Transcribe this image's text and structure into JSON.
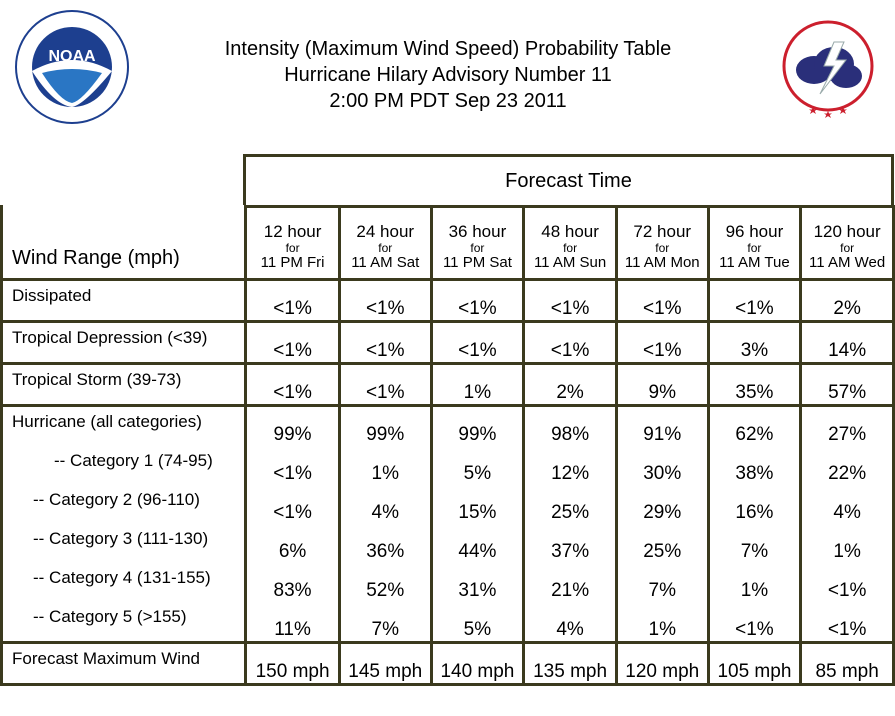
{
  "title": {
    "line1": "Intensity (Maximum Wind Speed) Probability Table",
    "line2": "Hurricane Hilary Advisory Number 11",
    "line3": "2:00 PM PDT Sep 23 2011"
  },
  "logos": {
    "left": {
      "icon": "noaa-logo",
      "text": "NOAA",
      "ring_text": "NATIONAL OCEANIC AND ATMOSPHERIC ADMINISTRATION · U.S. DEPARTMENT OF COMMERCE"
    },
    "right": {
      "icon": "nws-logo",
      "ring_text": "NATIONAL WEATHER SERVICE"
    }
  },
  "table": {
    "forecast_time_label": "Forecast Time",
    "row_header_label": "Wind Range (mph)",
    "columns": [
      {
        "hours": "12 hour",
        "for": "for",
        "time": "11 PM Fri"
      },
      {
        "hours": "24 hour",
        "for": "for",
        "time": "11 AM Sat"
      },
      {
        "hours": "36 hour",
        "for": "for",
        "time": "11 PM Sat"
      },
      {
        "hours": "48 hour",
        "for": "for",
        "time": "11 AM Sun"
      },
      {
        "hours": "72 hour",
        "for": "for",
        "time": "11 AM Mon"
      },
      {
        "hours": "96 hour",
        "for": "for",
        "time": "11 AM Tue"
      },
      {
        "hours": "120 hour",
        "for": "for",
        "time": "11 AM Wed"
      }
    ],
    "rows": [
      {
        "label": "Dissipated",
        "values": [
          "<1%",
          "<1%",
          "<1%",
          "<1%",
          "<1%",
          "<1%",
          "2%"
        ]
      },
      {
        "label": "Tropical Depression (<39)",
        "values": [
          "<1%",
          "<1%",
          "<1%",
          "<1%",
          "<1%",
          "3%",
          "14%"
        ]
      },
      {
        "label": "Tropical Storm (39-73)",
        "values": [
          "<1%",
          "<1%",
          "1%",
          "2%",
          "9%",
          "35%",
          "57%"
        ]
      },
      {
        "label": "Hurricane (all categories)",
        "values": [
          "99%",
          "99%",
          "99%",
          "98%",
          "91%",
          "62%",
          "27%"
        ]
      },
      {
        "label": "-- Category 1 (74-95)",
        "values": [
          "<1%",
          "1%",
          "5%",
          "12%",
          "30%",
          "38%",
          "22%"
        ]
      },
      {
        "label": "-- Category 2 (96-110)",
        "values": [
          "<1%",
          "4%",
          "15%",
          "25%",
          "29%",
          "16%",
          "4%"
        ]
      },
      {
        "label": "-- Category 3 (111-130)",
        "values": [
          "6%",
          "36%",
          "44%",
          "37%",
          "25%",
          "7%",
          "1%"
        ]
      },
      {
        "label": "-- Category 4 (131-155)",
        "values": [
          "83%",
          "52%",
          "31%",
          "21%",
          "7%",
          "1%",
          "<1%"
        ]
      },
      {
        "label": "-- Category 5 (>155)",
        "values": [
          "11%",
          "7%",
          "5%",
          "4%",
          "1%",
          "<1%",
          "<1%"
        ]
      },
      {
        "label": "Forecast Maximum Wind",
        "values": [
          "150 mph",
          "145 mph",
          "140 mph",
          "135 mph",
          "120 mph",
          "105 mph",
          "85 mph"
        ]
      }
    ]
  },
  "colors": {
    "border": "#3b3a1e",
    "noaa_blue": "#1d3f8f",
    "nws_red": "#cc1f2d",
    "nws_cloud": "#2a2f7a"
  }
}
